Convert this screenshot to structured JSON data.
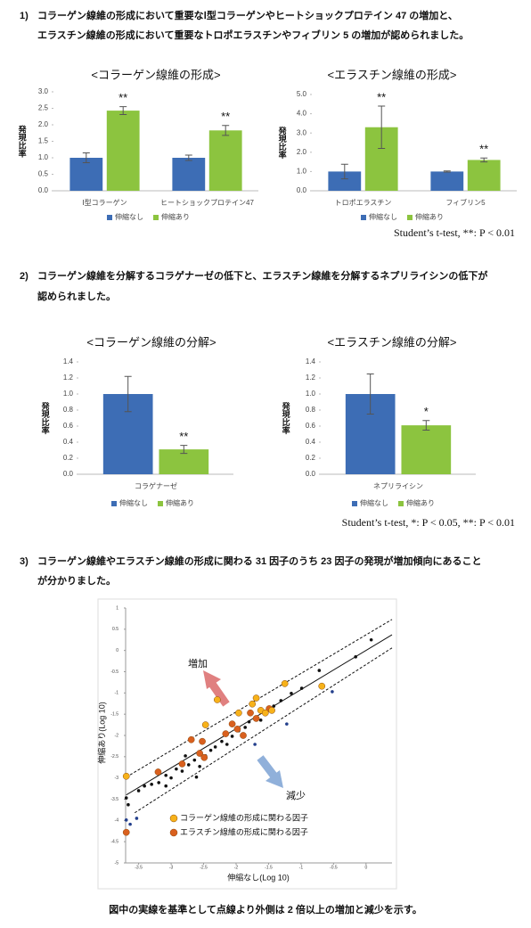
{
  "sections": [
    {
      "number": "1)",
      "lines": [
        "コラーゲン線維の形成において重要なⅠ型コラーゲンやヒートショックプロテイン 47 の増加と、",
        "エラスチン線維の形成において重要なトロポエラスチンやフィブリン 5 の増加が認められました。"
      ]
    },
    {
      "number": "2)",
      "lines": [
        "コラーゲン線維を分解するコラゲナーゼの低下と、エラスチン線維を分解するネプリライシンの低下が",
        "認められました。"
      ]
    },
    {
      "number": "3)",
      "lines": [
        "コラーゲン線維やエラスチン線維の形成に関わる 31 因子のうち 23 因子の発現が増加傾向にあること",
        "が分かりました。"
      ]
    }
  ],
  "chart_data": [
    {
      "type": "bar",
      "title": "<コラーゲン線維の形成>",
      "y_label": "発現比率",
      "categories": [
        "Ⅰ型コラーゲン",
        "ヒートショックプロテイン47"
      ],
      "series": [
        {
          "name": "伸縮なし",
          "color": "#3d6db5",
          "values": [
            1.0,
            1.0
          ],
          "errors": [
            0.15,
            0.08
          ]
        },
        {
          "name": "伸縮あり",
          "color": "#8cc43f",
          "values": [
            2.43,
            1.83
          ],
          "errors": [
            0.12,
            0.15
          ],
          "significance": [
            "**",
            "**"
          ]
        }
      ],
      "ylim": [
        0,
        3
      ],
      "yticks": [
        {
          "value": 0,
          "label": "0.0"
        },
        0.5,
        {
          "value": 1,
          "label": "1.0"
        },
        1.5,
        {
          "value": 2,
          "label": "2.0"
        },
        2.5,
        {
          "value": 3,
          "label": "3.0"
        }
      ]
    },
    {
      "type": "bar",
      "title": "<エラスチン線維の形成>",
      "y_label": "発現比率",
      "categories": [
        "トロポエラスチン",
        "フィブリン5"
      ],
      "series": [
        {
          "name": "伸縮なし",
          "color": "#3d6db5",
          "values": [
            1.0,
            1.0
          ],
          "errors": [
            0.38,
            0.03
          ]
        },
        {
          "name": "伸縮あり",
          "color": "#8cc43f",
          "values": [
            3.3,
            1.6
          ],
          "errors": [
            1.1,
            0.1
          ],
          "significance": [
            "**",
            "**"
          ]
        }
      ],
      "ylim": [
        0,
        5
      ],
      "yticks": [
        {
          "value": 0,
          "label": "0.0"
        },
        {
          "value": 1,
          "label": "1.0"
        },
        {
          "value": 2,
          "label": "2.0"
        },
        {
          "value": 3,
          "label": "3.0"
        },
        {
          "value": 4,
          "label": "4.0"
        },
        {
          "value": 5,
          "label": "5.0"
        }
      ],
      "note": "Student’s t-test, **: P < 0.01"
    },
    {
      "type": "bar",
      "title": "<コラーゲン線維の分解>",
      "y_label": "発現比率",
      "categories": [
        "コラゲナーゼ"
      ],
      "series": [
        {
          "name": "伸縮なし",
          "color": "#3d6db5",
          "values": [
            1.0
          ],
          "errors": [
            0.22
          ]
        },
        {
          "name": "伸縮あり",
          "color": "#8cc43f",
          "values": [
            0.31
          ],
          "errors": [
            0.05
          ],
          "significance": [
            "**"
          ]
        }
      ],
      "ylim": [
        0,
        1.4
      ],
      "yticks": [
        {
          "value": 0,
          "label": "0.0"
        },
        0.2,
        0.4,
        0.6,
        0.8,
        {
          "value": 1,
          "label": "1.0"
        },
        1.2,
        1.4
      ]
    },
    {
      "type": "bar",
      "title": "<エラスチン線維の分解>",
      "y_label": "発現比率",
      "categories": [
        "ネプリライシン"
      ],
      "series": [
        {
          "name": "伸縮なし",
          "color": "#3d6db5",
          "values": [
            1.0
          ],
          "errors": [
            0.25
          ]
        },
        {
          "name": "伸縮あり",
          "color": "#8cc43f",
          "values": [
            0.61
          ],
          "errors": [
            0.06
          ],
          "significance": [
            "*"
          ]
        }
      ],
      "ylim": [
        0,
        1.4
      ],
      "yticks": [
        {
          "value": 0,
          "label": "0.0"
        },
        0.2,
        0.4,
        0.6,
        0.8,
        {
          "value": 1,
          "label": "1.0"
        },
        1.2,
        1.4
      ],
      "note": "Student’s t-test, *: P < 0.05, **: P < 0.01"
    },
    {
      "type": "scatter",
      "x_label": "伸縮なし(Log 10)",
      "y_label": "伸縮あり(Log 10)",
      "annotations": [
        "増加",
        "減少"
      ],
      "xlim": [
        -3.7,
        0.4
      ],
      "xticks": [
        -3.5,
        -3,
        -2.5,
        -2,
        -1.5,
        -1,
        -0.5,
        0
      ],
      "ylim": [
        -5,
        1
      ],
      "yticks": [
        1,
        0.5,
        0,
        -0.5,
        -1,
        -1.5,
        -2,
        -2.5,
        -3,
        -3.5,
        -4,
        -4.5,
        -5
      ],
      "reference_lines": [
        {
          "style": "solid",
          "x": [
            -3.69,
            0.4
          ],
          "y": [
            -3.4,
            0.37
          ]
        },
        {
          "style": "dashed",
          "x": [
            -3.69,
            0.4
          ],
          "y": [
            -2.98,
            0.73
          ]
        },
        {
          "style": "dashed",
          "x": [
            -3.56,
            0.4
          ],
          "y": [
            -3.82,
            0.06
          ]
        }
      ],
      "series": [
        {
          "name": "コラーゲン線維の形成に関わる因子",
          "color": "#f7b21a",
          "x": [
            -3.69,
            -2.29,
            -1.96,
            -1.75,
            -1.69,
            -1.62,
            -1.55,
            -1.45,
            -1.25,
            -0.68,
            -2.47
          ],
          "y": [
            -2.96,
            -1.16,
            -1.47,
            -1.26,
            -1.12,
            -1.41,
            -1.47,
            -1.41,
            -0.78,
            -0.84,
            -1.75
          ]
        },
        {
          "name": "エラスチン線維の形成に関わる因子",
          "color": "#d9601e",
          "x": [
            -3.69,
            -3.2,
            -2.83,
            -2.69,
            -2.52,
            -2.56,
            -2.16,
            -2.06,
            -1.98,
            -1.89,
            -1.78,
            -1.69,
            -1.49,
            -2.49
          ],
          "y": [
            -4.28,
            -2.86,
            -2.67,
            -2.1,
            -2.14,
            -2.42,
            -1.96,
            -1.73,
            -1.85,
            -2.0,
            -1.47,
            -1.6,
            -1.37,
            -2.52
          ]
        },
        {
          "color": "#111111",
          "x": [
            -3.69,
            -3.66,
            -3.5,
            -3.41,
            -3.3,
            -3.19,
            -3.08,
            -3.0,
            -2.92,
            -2.83,
            -2.73,
            -2.64,
            -2.56,
            -2.47,
            -2.39,
            -2.32,
            -2.22,
            -2.14,
            -2.06,
            -1.96,
            -1.86,
            -1.8,
            -1.62,
            -1.42,
            -1.31,
            -1.15,
            -0.99,
            -0.72,
            -0.16,
            0.08,
            -3.08,
            -2.78,
            -2.61
          ],
          "y": [
            -3.47,
            -3.63,
            -3.3,
            -3.19,
            -3.15,
            -3.11,
            -2.94,
            -3.0,
            -2.79,
            -2.84,
            -2.69,
            -2.58,
            -2.73,
            -2.48,
            -2.35,
            -2.27,
            -2.14,
            -2.21,
            -2.02,
            -1.89,
            -1.81,
            -1.68,
            -1.64,
            -1.31,
            -1.18,
            -1.01,
            -0.89,
            -0.47,
            -0.15,
            0.25,
            -3.19,
            -2.48,
            -2.98
          ]
        },
        {
          "color": "#233f8c",
          "x": [
            -3.69,
            -3.63,
            -3.53,
            -1.71,
            -1.22,
            -0.52
          ],
          "y": [
            -3.99,
            -4.09,
            -3.95,
            -2.21,
            -1.73,
            -0.97
          ]
        }
      ]
    }
  ],
  "caption": "図中の実線を基準として点線より外側は 2 倍以上の増加と減少を示す。"
}
